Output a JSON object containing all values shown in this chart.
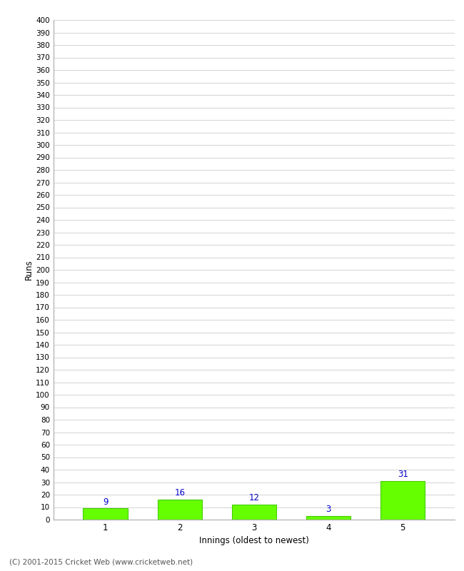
{
  "categories": [
    1,
    2,
    3,
    4,
    5
  ],
  "values": [
    9,
    16,
    12,
    3,
    31
  ],
  "bar_color": "#66ff00",
  "bar_edge_color": "#44cc00",
  "value_color": "#0000cc",
  "xlabel": "Innings (oldest to newest)",
  "ylabel": "Runs",
  "ylim": [
    0,
    400
  ],
  "ytick_step": 10,
  "background_color": "#ffffff",
  "grid_color": "#cccccc",
  "footer": "(C) 2001-2015 Cricket Web (www.cricketweb.net)"
}
